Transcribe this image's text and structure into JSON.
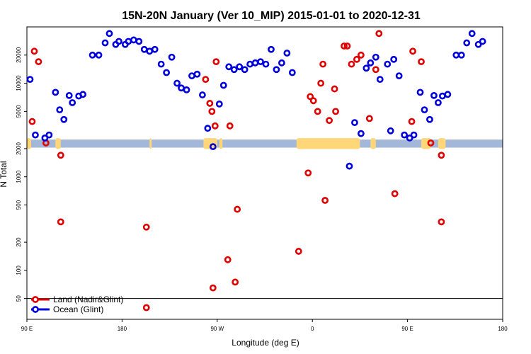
{
  "chart_data": {
    "type": "scatter",
    "title": "15N-20N January (Ver 10_MIP)   2015-01-01 to 2020-12-31",
    "xlabel": "Longitude (deg E)",
    "ylabel": "N Total",
    "x_scale": "longitude, 90E to 180 wrapping through 180/90W/0/90E",
    "xlim": [
      90,
      540
    ],
    "y_scale": "log",
    "ylim": [
      30,
      40000
    ],
    "x_ticks": [
      {
        "value": 90,
        "label": "90 E"
      },
      {
        "value": 180,
        "label": "180"
      },
      {
        "value": 270,
        "label": "90 W"
      },
      {
        "value": 360,
        "label": "0"
      },
      {
        "value": 450,
        "label": "90 E"
      },
      {
        "value": 540,
        "label": "180"
      }
    ],
    "y_ticks": [
      {
        "value": 50,
        "label": "50"
      },
      {
        "value": 100,
        "label": "100"
      },
      {
        "value": 200,
        "label": "200"
      },
      {
        "value": 500,
        "label": "500"
      },
      {
        "value": 1000,
        "label": "1000"
      },
      {
        "value": 2000,
        "label": "2000"
      },
      {
        "value": 5000,
        "label": "5000"
      },
      {
        "value": 10000,
        "label": "10000"
      },
      {
        "value": 20000,
        "label": "20000"
      }
    ],
    "reference_line": 50,
    "background_band": {
      "y_range": [
        2050,
        2500
      ],
      "ocean_color": "#a3b8d9",
      "land_color": "#ffd678",
      "land_segments": [
        [
          90,
          94
        ],
        [
          117,
          122
        ],
        [
          206,
          208
        ],
        [
          257,
          270
        ],
        [
          272,
          275
        ],
        [
          345,
          405
        ],
        [
          415,
          420
        ],
        [
          463,
          472
        ],
        [
          479,
          486
        ],
        [
          560,
          560
        ]
      ]
    },
    "legend": {
      "placement": "bottom-left"
    },
    "series": [
      {
        "name": "Land (Nadir&Glint)",
        "color": "#e00000",
        "points": [
          [
            95,
            3900
          ],
          [
            97,
            22000
          ],
          [
            101,
            17000
          ],
          [
            108,
            2300
          ],
          [
            122,
            1700
          ],
          [
            122,
            330
          ],
          [
            203,
            290
          ],
          [
            203,
            40
          ],
          [
            259,
            11000
          ],
          [
            265,
            5000
          ],
          [
            263,
            6100
          ],
          [
            268,
            3500
          ],
          [
            269,
            17000
          ],
          [
            280,
            130
          ],
          [
            266,
            65
          ],
          [
            282,
            3500
          ],
          [
            289,
            450
          ],
          [
            287,
            75
          ],
          [
            347,
            160
          ],
          [
            356,
            1100
          ],
          [
            358,
            7200
          ],
          [
            361,
            6500
          ],
          [
            365,
            5000
          ],
          [
            368,
            10000
          ],
          [
            370,
            16000
          ],
          [
            372,
            560
          ],
          [
            376,
            4000
          ],
          [
            381,
            8700
          ],
          [
            382,
            5000
          ],
          [
            390,
            25000
          ],
          [
            393,
            25000
          ],
          [
            397,
            16000
          ],
          [
            402,
            18000
          ],
          [
            406,
            20000
          ],
          [
            414,
            4200
          ],
          [
            420,
            14000
          ],
          [
            423,
            34000
          ],
          [
            438,
            660
          ],
          [
            454,
            3900
          ],
          [
            455,
            22000
          ],
          [
            463,
            17000
          ],
          [
            472,
            2300
          ],
          [
            482,
            1700
          ],
          [
            482,
            330
          ]
        ]
      },
      {
        "name": "Ocean (Glint)",
        "color": "#0000dd",
        "points": [
          [
            93,
            11000
          ],
          [
            98,
            2800
          ],
          [
            107,
            2600
          ],
          [
            111,
            2800
          ],
          [
            117,
            8000
          ],
          [
            121,
            5200
          ],
          [
            125,
            4100
          ],
          [
            130,
            7400
          ],
          [
            133,
            6200
          ],
          [
            139,
            7300
          ],
          [
            143,
            7600
          ],
          [
            152,
            20000
          ],
          [
            158,
            20000
          ],
          [
            164,
            27000
          ],
          [
            168,
            34000
          ],
          [
            174,
            26000
          ],
          [
            177,
            28000
          ],
          [
            183,
            26000
          ],
          [
            186,
            28000
          ],
          [
            191,
            29000
          ],
          [
            196,
            28000
          ],
          [
            201,
            23000
          ],
          [
            206,
            22000
          ],
          [
            211,
            23000
          ],
          [
            217,
            16000
          ],
          [
            222,
            13000
          ],
          [
            227,
            19000
          ],
          [
            232,
            10000
          ],
          [
            236,
            8900
          ],
          [
            241,
            8500
          ],
          [
            246,
            12000
          ],
          [
            251,
            12500
          ],
          [
            256,
            7500
          ],
          [
            261,
            3300
          ],
          [
            266,
            2100
          ],
          [
            272,
            6000
          ],
          [
            276,
            9500
          ],
          [
            281,
            15000
          ],
          [
            286,
            14000
          ],
          [
            291,
            15000
          ],
          [
            296,
            14000
          ],
          [
            301,
            16000
          ],
          [
            306,
            16500
          ],
          [
            311,
            17000
          ],
          [
            316,
            16000
          ],
          [
            321,
            23000
          ],
          [
            326,
            14000
          ],
          [
            331,
            16500
          ],
          [
            336,
            21000
          ],
          [
            341,
            13000
          ],
          [
            395,
            1300
          ],
          [
            400,
            3800
          ],
          [
            406,
            2900
          ],
          [
            411,
            14500
          ],
          [
            415,
            16500
          ],
          [
            420,
            19000
          ],
          [
            424,
            11000
          ],
          [
            431,
            16000
          ],
          [
            434,
            3100
          ],
          [
            437,
            18000
          ],
          [
            442,
            12000
          ],
          [
            447,
            2800
          ],
          [
            452,
            2600
          ],
          [
            456,
            2800
          ],
          [
            462,
            8000
          ],
          [
            466,
            5200
          ],
          [
            471,
            4100
          ],
          [
            475,
            7400
          ],
          [
            479,
            6200
          ],
          [
            483,
            7300
          ],
          [
            488,
            7600
          ],
          [
            496,
            20000
          ],
          [
            501,
            20000
          ],
          [
            506,
            27000
          ],
          [
            511,
            34000
          ],
          [
            517,
            26000
          ],
          [
            521,
            28000
          ]
        ]
      }
    ]
  }
}
